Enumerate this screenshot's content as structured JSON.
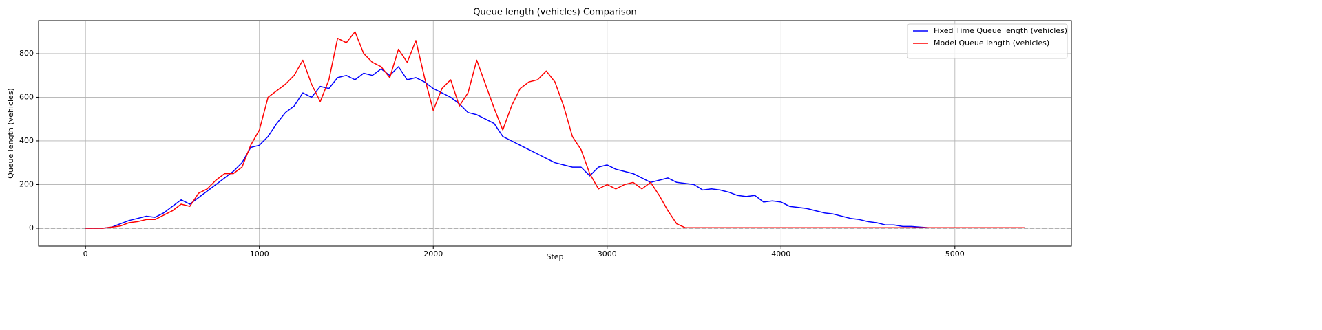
{
  "chart_data": {
    "type": "line",
    "title": "Queue length (vehicles) Comparison",
    "x_label": "Step",
    "y_label": "Queue length (vehicles)",
    "x": [
      0,
      50,
      100,
      150,
      200,
      250,
      300,
      350,
      400,
      450,
      500,
      550,
      600,
      650,
      700,
      750,
      800,
      850,
      900,
      950,
      1000,
      1050,
      1100,
      1150,
      1200,
      1250,
      1300,
      1350,
      1400,
      1450,
      1500,
      1550,
      1600,
      1650,
      1700,
      1750,
      1800,
      1850,
      1900,
      1950,
      2000,
      2050,
      2100,
      2150,
      2200,
      2250,
      2300,
      2350,
      2400,
      2450,
      2500,
      2550,
      2600,
      2650,
      2700,
      2750,
      2800,
      2850,
      2900,
      2950,
      3000,
      3050,
      3100,
      3150,
      3200,
      3250,
      3300,
      3350,
      3400,
      3450,
      3500,
      3550,
      3600,
      3650,
      3700,
      3750,
      3800,
      3850,
      3900,
      3950,
      4000,
      4050,
      4100,
      4150,
      4200,
      4250,
      4300,
      4350,
      4400,
      4450,
      4500,
      4550,
      4600,
      4650,
      4700,
      4750,
      4800,
      4850,
      4900,
      4950,
      5000,
      5050,
      5100,
      5150,
      5200,
      5250,
      5300,
      5350,
      5400
    ],
    "series": [
      {
        "name": "Fixed Time Queue length (vehicles)",
        "color": "#0000ff",
        "values": [
          0,
          0,
          0,
          5,
          20,
          35,
          45,
          55,
          50,
          70,
          100,
          130,
          110,
          140,
          170,
          200,
          230,
          260,
          300,
          370,
          380,
          420,
          480,
          530,
          560,
          620,
          600,
          650,
          640,
          690,
          700,
          680,
          710,
          700,
          730,
          700,
          740,
          680,
          690,
          670,
          640,
          620,
          600,
          570,
          530,
          520,
          500,
          480,
          420,
          400,
          380,
          360,
          340,
          320,
          300,
          290,
          280,
          280,
          240,
          280,
          290,
          270,
          260,
          250,
          230,
          210,
          220,
          230,
          210,
          205,
          200,
          175,
          180,
          175,
          165,
          150,
          145,
          150,
          120,
          125,
          120,
          100,
          95,
          90,
          80,
          70,
          65,
          55,
          45,
          40,
          30,
          25,
          15,
          15,
          8,
          8,
          5,
          2,
          2,
          2,
          2,
          2,
          2,
          2,
          2,
          2,
          2,
          2,
          2
        ]
      },
      {
        "name": "Model Queue length (vehicles)",
        "color": "#ff0000",
        "values": [
          0,
          0,
          0,
          5,
          10,
          25,
          30,
          40,
          40,
          60,
          80,
          110,
          100,
          160,
          180,
          220,
          250,
          250,
          280,
          380,
          450,
          600,
          630,
          660,
          700,
          770,
          660,
          580,
          680,
          870,
          850,
          900,
          800,
          760,
          740,
          690,
          820,
          760,
          860,
          690,
          540,
          640,
          680,
          560,
          620,
          770,
          660,
          550,
          450,
          560,
          640,
          670,
          680,
          720,
          670,
          560,
          420,
          360,
          250,
          180,
          200,
          180,
          200,
          210,
          180,
          210,
          150,
          80,
          20,
          2,
          2,
          2,
          2,
          2,
          2,
          2,
          2,
          2,
          2,
          2,
          2,
          2,
          2,
          2,
          2,
          2,
          2,
          2,
          2,
          2,
          2,
          2,
          2,
          2,
          2,
          2,
          2,
          2,
          2,
          2,
          2,
          2,
          2,
          2,
          2,
          2,
          2,
          2,
          2
        ]
      }
    ],
    "xlim": [
      -270,
      5670
    ],
    "ylim": [
      -82,
      951
    ],
    "xticks": [
      0,
      1000,
      2000,
      3000,
      4000,
      5000
    ],
    "yticks": [
      0,
      200,
      400,
      600,
      800
    ],
    "hline": 0,
    "grid": true,
    "legend": "upper right"
  }
}
